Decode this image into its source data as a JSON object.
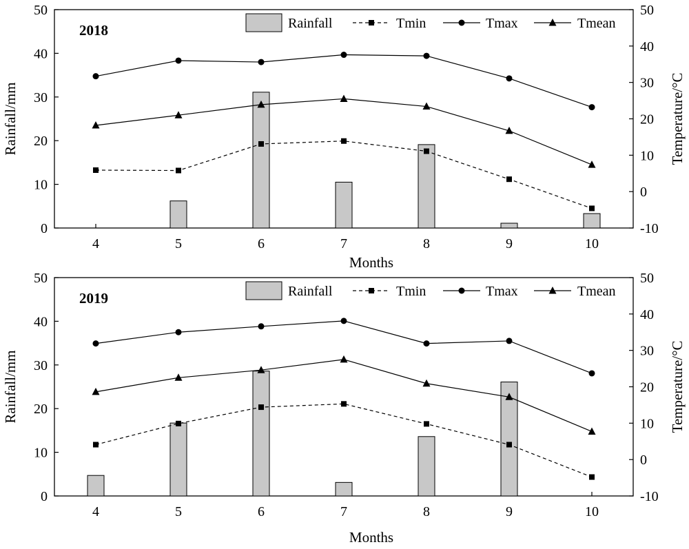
{
  "chart_data": [
    {
      "type": "bar+line",
      "panel_label": "2018",
      "xlabel": "Months",
      "ylabel_left": "Rainfall/mm",
      "ylabel_right": "Temperature/°C",
      "ylim_left": [
        0,
        50
      ],
      "ylim_right": [
        -10,
        50
      ],
      "yticks_left": [
        "0",
        "10",
        "20",
        "30",
        "40",
        "50"
      ],
      "yticks_right": [
        "-10",
        "0",
        "10",
        "20",
        "30",
        "40",
        "50"
      ],
      "categories": [
        "4",
        "5",
        "6",
        "7",
        "8",
        "9",
        "10"
      ],
      "legend": [
        "Rainfall",
        "Tmin",
        "Tmax",
        "Tmean"
      ],
      "legend_position": "top",
      "grid": false,
      "rainfall": [
        0,
        6.2,
        31.1,
        10.5,
        19.1,
        1.1,
        3.3
      ],
      "tmin": [
        5.9,
        5.8,
        13.1,
        13.9,
        11.1,
        3.4,
        -4.6
      ],
      "tmax": [
        31.7,
        36.0,
        35.6,
        37.6,
        37.3,
        31.1,
        23.2
      ],
      "tmean": [
        18.2,
        21.0,
        23.9,
        25.5,
        23.4,
        16.7,
        7.4
      ]
    },
    {
      "type": "bar+line",
      "panel_label": "2019",
      "xlabel": "Months",
      "ylabel_left": "Rainfall/mm",
      "ylabel_right": "Temperature/°C",
      "ylim_left": [
        0,
        50
      ],
      "ylim_right": [
        -10,
        50
      ],
      "yticks_left": [
        "0",
        "10",
        "20",
        "30",
        "40",
        "50"
      ],
      "yticks_right": [
        "-10",
        "0",
        "10",
        "20",
        "30",
        "40",
        "50"
      ],
      "categories": [
        "4",
        "5",
        "6",
        "7",
        "8",
        "9",
        "10"
      ],
      "legend": [
        "Rainfall",
        "Tmin",
        "Tmax",
        "Tmean"
      ],
      "legend_position": "top",
      "grid": false,
      "rainfall": [
        4.7,
        16.7,
        28.6,
        3.1,
        13.6,
        26.1,
        0
      ],
      "tmin": [
        4.1,
        9.9,
        14.4,
        15.3,
        9.8,
        4.1,
        -4.8
      ],
      "tmax": [
        31.9,
        35.0,
        36.6,
        38.1,
        31.9,
        32.6,
        23.7
      ],
      "tmean": [
        18.6,
        22.5,
        24.6,
        27.5,
        20.9,
        17.2,
        7.7
      ]
    }
  ]
}
